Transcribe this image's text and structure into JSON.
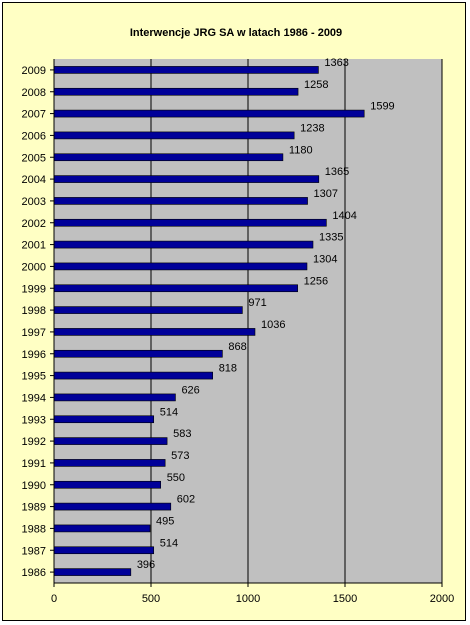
{
  "chart_data": {
    "type": "bar",
    "orientation": "horizontal",
    "title": "Interwencje JRG SA w latach 1986 - 2009",
    "xlabel": "",
    "ylabel": "",
    "xlim": [
      0,
      2000
    ],
    "x_ticks": [
      "0",
      "500",
      "1000",
      "1500",
      "2000"
    ],
    "grid": true,
    "legend": "none",
    "categories": [
      "2009",
      "2008",
      "2007",
      "2006",
      "2005",
      "2004",
      "2003",
      "2002",
      "2001",
      "2000",
      "1999",
      "1998",
      "1997",
      "1996",
      "1995",
      "1994",
      "1993",
      "1992",
      "1991",
      "1990",
      "1989",
      "1988",
      "1987",
      "1986"
    ],
    "values": [
      1363,
      1258,
      1599,
      1238,
      1180,
      1365,
      1307,
      1404,
      1335,
      1304,
      1256,
      971,
      1036,
      868,
      818,
      626,
      514,
      583,
      573,
      550,
      602,
      495,
      514,
      396
    ],
    "colors": {
      "bar_fill": "#000099",
      "plot_background": "#c0c0c0",
      "frame_background": "#ffffc4",
      "gridline": "#000000"
    }
  }
}
